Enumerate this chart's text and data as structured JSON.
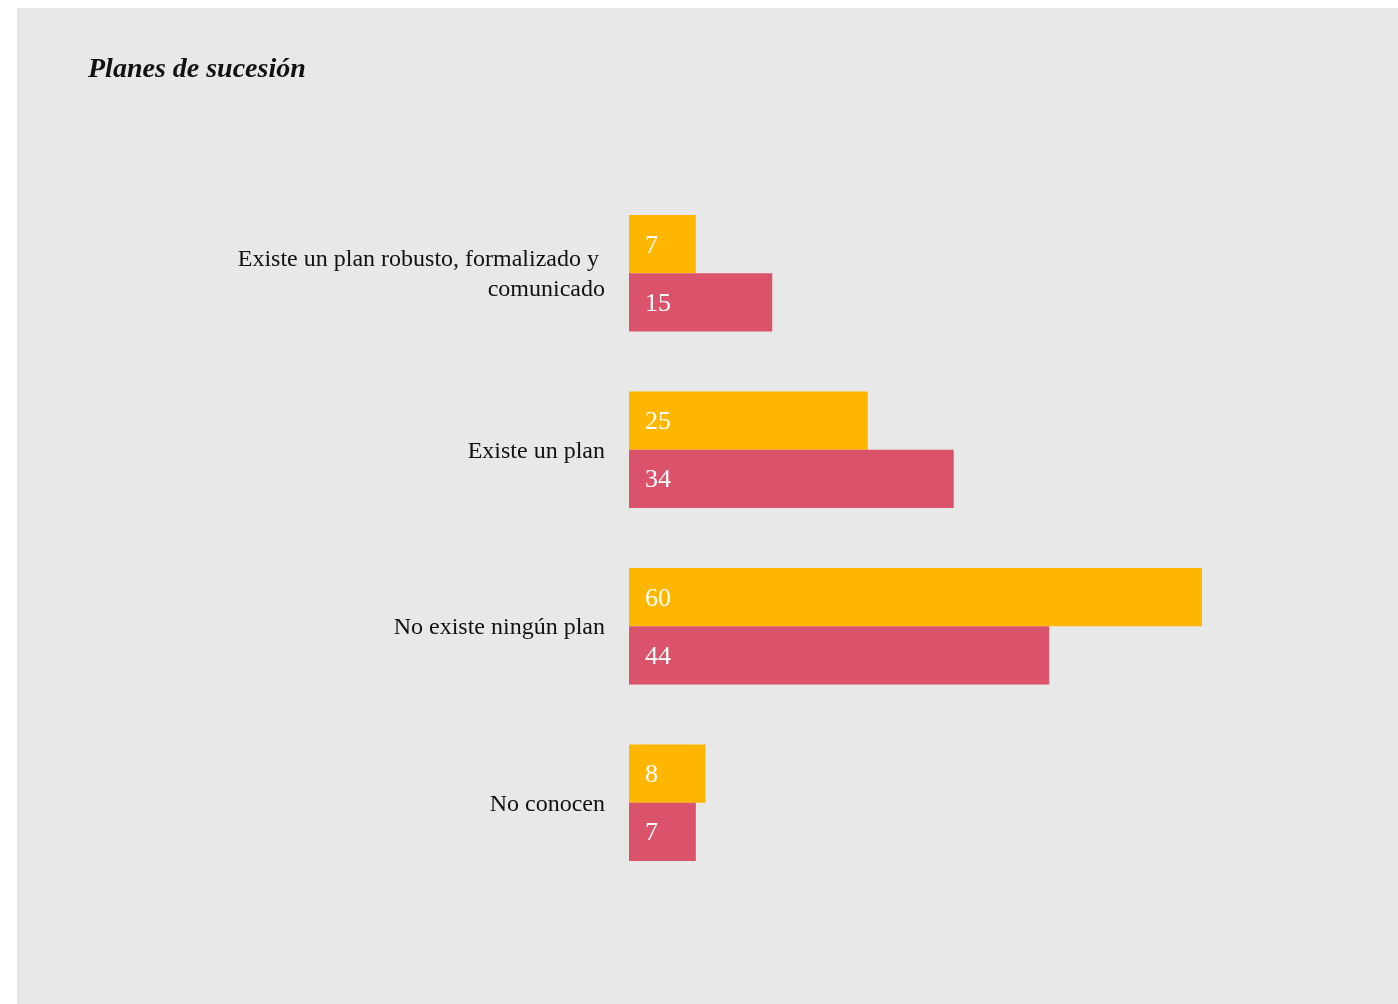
{
  "chart_data": {
    "type": "bar",
    "title": "Planes de sucesión",
    "orientation": "horizontal",
    "categories": [
      "Existe un plan robusto, formalizado y comunicado",
      "Existe un plan",
      "No existe ningún plan",
      "No conocen"
    ],
    "series": [
      {
        "color": "#ffb600",
        "values": [
          7,
          25,
          60,
          8
        ]
      },
      {
        "color": "#db536a",
        "values": [
          15,
          34,
          44,
          7
        ]
      }
    ],
    "data_labels": true
  }
}
